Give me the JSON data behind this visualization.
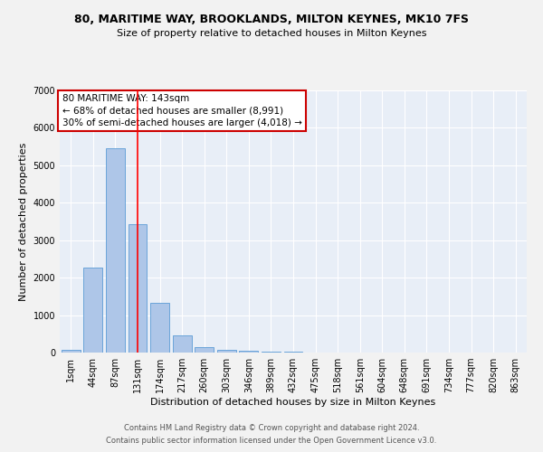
{
  "title": "80, MARITIME WAY, BROOKLANDS, MILTON KEYNES, MK10 7FS",
  "subtitle": "Size of property relative to detached houses in Milton Keynes",
  "xlabel": "Distribution of detached houses by size in Milton Keynes",
  "ylabel": "Number of detached properties",
  "categories": [
    "1sqm",
    "44sqm",
    "87sqm",
    "131sqm",
    "174sqm",
    "217sqm",
    "260sqm",
    "303sqm",
    "346sqm",
    "389sqm",
    "432sqm",
    "475sqm",
    "518sqm",
    "561sqm",
    "604sqm",
    "648sqm",
    "691sqm",
    "734sqm",
    "777sqm",
    "820sqm",
    "863sqm"
  ],
  "values": [
    80,
    2280,
    5450,
    3430,
    1320,
    460,
    145,
    75,
    50,
    30,
    15,
    8,
    4,
    2,
    1,
    0,
    0,
    0,
    0,
    0,
    0
  ],
  "bar_color": "#aec6e8",
  "bar_edge_color": "#5b9bd5",
  "background_color": "#e8eef7",
  "fig_background_color": "#f2f2f2",
  "grid_color": "#ffffff",
  "ylim": [
    0,
    7000
  ],
  "yticks": [
    0,
    1000,
    2000,
    3000,
    4000,
    5000,
    6000,
    7000
  ],
  "red_line_x": 3.0,
  "annotation_line1": "80 MARITIME WAY: 143sqm",
  "annotation_line2": "← 68% of detached houses are smaller (8,991)",
  "annotation_line3": "30% of semi-detached houses are larger (4,018) →",
  "annotation_box_color": "#ffffff",
  "annotation_box_edge": "#cc0000",
  "footer_line1": "Contains HM Land Registry data © Crown copyright and database right 2024.",
  "footer_line2": "Contains public sector information licensed under the Open Government Licence v3.0.",
  "title_fontsize": 9,
  "subtitle_fontsize": 8,
  "ylabel_fontsize": 8,
  "xlabel_fontsize": 8,
  "tick_fontsize": 7,
  "annotation_fontsize": 7.5,
  "footer_fontsize": 6
}
